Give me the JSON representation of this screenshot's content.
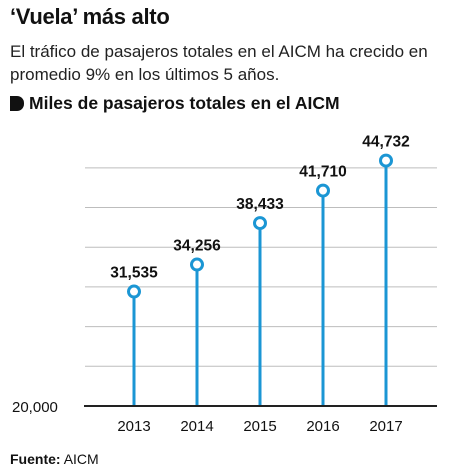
{
  "header": {
    "title": "‘Vuela’ más alto",
    "subtitle": "El tráfico de pasajeros totales en el AICM ha crecido en promedio 9% en los últimos 5 años.",
    "units_label": "Miles de pasajeros totales en el AICM"
  },
  "footer": {
    "source_label": "Fuente:",
    "source_value": "AICM"
  },
  "colors": {
    "accent": "#1b96d4",
    "grid": "#bdbdbd",
    "baseline": "#222222"
  },
  "chart_data": {
    "type": "lollipop",
    "categories": [
      "2013",
      "2014",
      "2015",
      "2016",
      "2017"
    ],
    "values": [
      31535,
      34256,
      38433,
      41710,
      44732
    ],
    "value_labels": [
      "31,535",
      "34,256",
      "38,433",
      "41,710",
      "44,732"
    ],
    "ylim": [
      20000,
      46000
    ],
    "y_tick_labels": [
      {
        "value": 20000,
        "label": "20,000"
      }
    ],
    "grid_values": [
      24000,
      28000,
      32000,
      36000,
      40000,
      44000
    ],
    "grid": true,
    "title": "",
    "xlabel": "",
    "ylabel": ""
  }
}
